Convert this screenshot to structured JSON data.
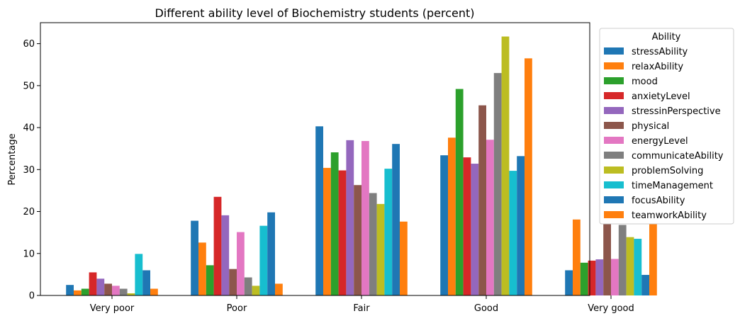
{
  "chart_data": {
    "type": "bar",
    "title": "Different ability level of Biochemistry students (percent)",
    "xlabel": "",
    "ylabel": "Percentage",
    "ylim": [
      0,
      65
    ],
    "yticks": [
      0,
      10,
      20,
      30,
      40,
      50,
      60
    ],
    "grid": false,
    "legend_title": "Ability",
    "legend_position": "outside-right-top",
    "categories": [
      "Very poor",
      "Poor",
      "Fair",
      "Good",
      "Very good"
    ],
    "series": [
      {
        "name": "stressAbility",
        "color": "#1f77b4",
        "values": [
          2.5,
          17.8,
          40.3,
          33.4,
          6.0
        ]
      },
      {
        "name": "relaxAbility",
        "color": "#ff7f0e",
        "values": [
          1.2,
          12.6,
          30.4,
          37.6,
          18.1
        ]
      },
      {
        "name": "mood",
        "color": "#2ca02c",
        "values": [
          1.6,
          7.2,
          34.1,
          49.2,
          7.8
        ]
      },
      {
        "name": "anxietyLevel",
        "color": "#d62728",
        "values": [
          5.5,
          23.5,
          29.8,
          32.9,
          8.3
        ]
      },
      {
        "name": "stressinPerspective",
        "color": "#9467bd",
        "values": [
          4.0,
          19.1,
          37.0,
          31.4,
          8.6
        ]
      },
      {
        "name": "physical",
        "color": "#8c564b",
        "values": [
          2.8,
          6.3,
          26.3,
          45.3,
          19.1
        ]
      },
      {
        "name": "energyLevel",
        "color": "#e377c2",
        "values": [
          2.3,
          15.1,
          36.8,
          37.1,
          8.7
        ]
      },
      {
        "name": "communicateAbility",
        "color": "#7f7f7f",
        "values": [
          1.6,
          4.3,
          24.4,
          53.0,
          16.8
        ]
      },
      {
        "name": "problemSolving",
        "color": "#bcbd22",
        "values": [
          0.5,
          2.3,
          21.8,
          61.7,
          13.9
        ]
      },
      {
        "name": "timeManagement",
        "color": "#17becf",
        "values": [
          9.9,
          16.6,
          30.2,
          29.7,
          13.5
        ]
      },
      {
        "name": "focusAbility",
        "color": "#1f77b4",
        "values": [
          6.0,
          19.8,
          36.1,
          33.2,
          4.9
        ]
      },
      {
        "name": "teamworkAbility",
        "color": "#ff7f0e",
        "values": [
          1.6,
          2.8,
          17.6,
          56.5,
          21.6
        ]
      }
    ]
  }
}
